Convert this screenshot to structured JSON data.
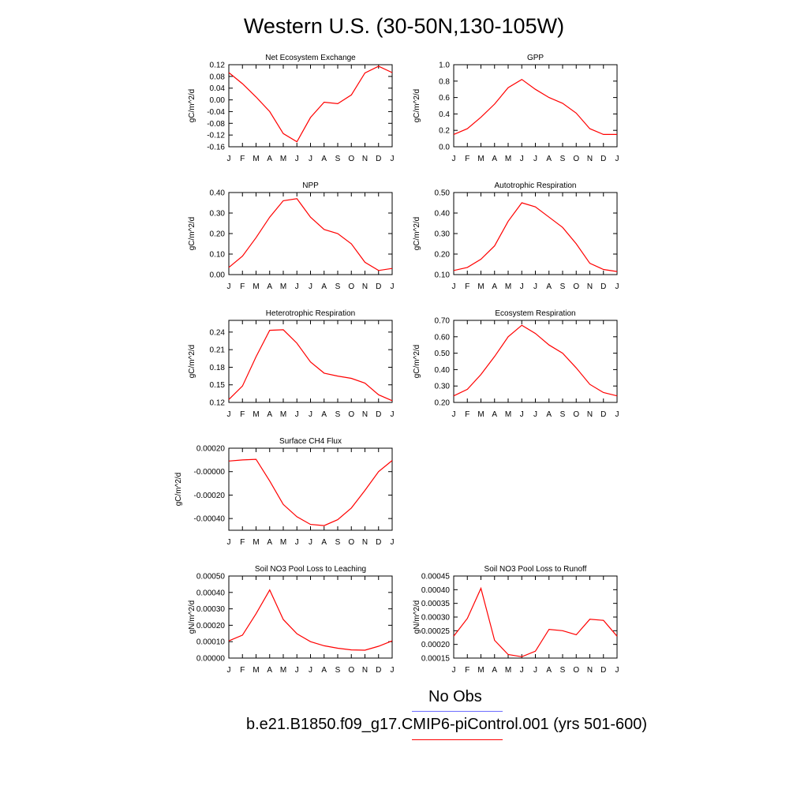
{
  "title": "Western U.S. (30-50N,130-105W)",
  "colors": {
    "model": "#ff0000",
    "obs": "#6d6dff",
    "axis": "#000000"
  },
  "legend": {
    "obs_label": "No Obs",
    "model_label": "b.e21.B1850.f09_g17.CMIP6-piControl.001 (yrs 501-600)"
  },
  "chart_data": [
    {
      "type": "line",
      "title": "Net Ecosystem Exchange",
      "ylabel": "gC/m^2/d",
      "categories": [
        "J",
        "F",
        "M",
        "A",
        "M",
        "J",
        "J",
        "A",
        "S",
        "O",
        "N",
        "D",
        "J"
      ],
      "ylim": [
        -0.16,
        0.12
      ],
      "yticks": [
        -0.16,
        -0.12,
        -0.08,
        -0.04,
        0.0,
        0.04,
        0.08,
        0.12
      ],
      "ytick_labels": [
        "-0.16",
        "-0.12",
        "-0.08",
        "-0.04",
        "0.00",
        "0.04",
        "0.08",
        "0.12"
      ],
      "values": [
        0.093,
        0.055,
        0.01,
        -0.04,
        -0.115,
        -0.143,
        -0.06,
        -0.008,
        -0.013,
        0.017,
        0.092,
        0.115,
        0.093
      ]
    },
    {
      "type": "line",
      "title": "GPP",
      "ylabel": "gC/m^2/d",
      "categories": [
        "J",
        "F",
        "M",
        "A",
        "M",
        "J",
        "J",
        "A",
        "S",
        "O",
        "N",
        "D",
        "J"
      ],
      "ylim": [
        0.0,
        1.0
      ],
      "yticks": [
        0.0,
        0.2,
        0.4,
        0.6,
        0.8,
        1.0
      ],
      "ytick_labels": [
        "0.0",
        "0.2",
        "0.4",
        "0.6",
        "0.8",
        "1.0"
      ],
      "values": [
        0.15,
        0.22,
        0.36,
        0.52,
        0.72,
        0.82,
        0.7,
        0.6,
        0.53,
        0.41,
        0.22,
        0.15,
        0.15
      ]
    },
    {
      "type": "line",
      "title": "NPP",
      "ylabel": "gC/m^2/d",
      "categories": [
        "J",
        "F",
        "M",
        "A",
        "M",
        "J",
        "J",
        "A",
        "S",
        "O",
        "N",
        "D",
        "J"
      ],
      "ylim": [
        0.0,
        0.4
      ],
      "yticks": [
        0.0,
        0.1,
        0.2,
        0.3,
        0.4
      ],
      "ytick_labels": [
        "0.00",
        "0.10",
        "0.20",
        "0.30",
        "0.40"
      ],
      "values": [
        0.035,
        0.09,
        0.18,
        0.28,
        0.36,
        0.37,
        0.28,
        0.22,
        0.2,
        0.15,
        0.06,
        0.02,
        0.03
      ]
    },
    {
      "type": "line",
      "title": "Autotrophic Respiration",
      "ylabel": "gC/m^2/d",
      "categories": [
        "J",
        "F",
        "M",
        "A",
        "M",
        "J",
        "J",
        "A",
        "S",
        "O",
        "N",
        "D",
        "J"
      ],
      "ylim": [
        0.1,
        0.5
      ],
      "yticks": [
        0.1,
        0.2,
        0.3,
        0.4,
        0.5
      ],
      "ytick_labels": [
        "0.10",
        "0.20",
        "0.30",
        "0.40",
        "0.50"
      ],
      "values": [
        0.12,
        0.135,
        0.175,
        0.24,
        0.36,
        0.45,
        0.43,
        0.38,
        0.33,
        0.25,
        0.155,
        0.125,
        0.115
      ]
    },
    {
      "type": "line",
      "title": "Heterotrophic Respiration",
      "ylabel": "gC/m^2/d",
      "categories": [
        "J",
        "F",
        "M",
        "A",
        "M",
        "J",
        "J",
        "A",
        "S",
        "O",
        "N",
        "D",
        "J"
      ],
      "ylim": [
        0.12,
        0.26
      ],
      "yticks": [
        0.12,
        0.15,
        0.18,
        0.21,
        0.24
      ],
      "ytick_labels": [
        "0.12",
        "0.15",
        "0.18",
        "0.21",
        "0.24"
      ],
      "values": [
        0.125,
        0.148,
        0.198,
        0.243,
        0.244,
        0.221,
        0.189,
        0.17,
        0.165,
        0.161,
        0.153,
        0.133,
        0.123
      ]
    },
    {
      "type": "line",
      "title": "Ecosystem Respiration",
      "ylabel": "gC/m^2/d",
      "categories": [
        "J",
        "F",
        "M",
        "A",
        "M",
        "J",
        "J",
        "A",
        "S",
        "O",
        "N",
        "D",
        "J"
      ],
      "ylim": [
        0.2,
        0.7
      ],
      "yticks": [
        0.2,
        0.3,
        0.4,
        0.5,
        0.6,
        0.7
      ],
      "ytick_labels": [
        "0.20",
        "0.30",
        "0.40",
        "0.50",
        "0.60",
        "0.70"
      ],
      "values": [
        0.24,
        0.28,
        0.37,
        0.48,
        0.6,
        0.67,
        0.62,
        0.55,
        0.5,
        0.41,
        0.31,
        0.26,
        0.24
      ]
    },
    {
      "type": "line",
      "title": "Surface CH4 Flux",
      "ylabel": "gC/m^2/d",
      "categories": [
        "J",
        "F",
        "M",
        "A",
        "M",
        "J",
        "J",
        "A",
        "S",
        "O",
        "N",
        "D",
        "J"
      ],
      "ylim": [
        -0.0005,
        0.0002
      ],
      "yticks": [
        -0.0004,
        -0.0002,
        0.0,
        0.0002
      ],
      "ytick_labels": [
        "-0.00040",
        "-0.00020",
        "-0.00000",
        "0.00020"
      ],
      "values": [
        9e-05,
        0.0001,
        0.000105,
        -8e-05,
        -0.00028,
        -0.000385,
        -0.00045,
        -0.00046,
        -0.00041,
        -0.00031,
        -0.00016,
        0.0,
        9.5e-05
      ]
    },
    {
      "type": "line",
      "title": "Soil NO3 Pool Loss to Leaching",
      "ylabel": "gN/m^2/d",
      "categories": [
        "J",
        "F",
        "M",
        "A",
        "M",
        "J",
        "J",
        "A",
        "S",
        "O",
        "N",
        "D",
        "J"
      ],
      "ylim": [
        0.0,
        0.0005
      ],
      "yticks": [
        0.0,
        0.0001,
        0.0002,
        0.0003,
        0.0004,
        0.0005
      ],
      "ytick_labels": [
        "0.00000",
        "0.00010",
        "0.00020",
        "0.00030",
        "0.00040",
        "0.00050"
      ],
      "values": [
        0.000105,
        0.00014,
        0.00027,
        0.000415,
        0.000235,
        0.000148,
        0.0001,
        7.5e-05,
        6e-05,
        5e-05,
        4.8e-05,
        7.2e-05,
        0.000105
      ]
    },
    {
      "type": "line",
      "title": "Soil NO3 Pool Loss to Runoff",
      "ylabel": "gN/m^2/d",
      "categories": [
        "J",
        "F",
        "M",
        "A",
        "M",
        "J",
        "J",
        "A",
        "S",
        "O",
        "N",
        "D",
        "J"
      ],
      "ylim": [
        0.00015,
        0.00045
      ],
      "yticks": [
        0.00015,
        0.0002,
        0.00025,
        0.0003,
        0.00035,
        0.0004,
        0.00045
      ],
      "ytick_labels": [
        "0.00015",
        "0.00020",
        "0.00025",
        "0.00030",
        "0.00035",
        "0.00040",
        "0.00045"
      ],
      "values": [
        0.00023,
        0.000295,
        0.000405,
        0.000215,
        0.000163,
        0.000155,
        0.000175,
        0.000255,
        0.00025,
        0.000235,
        0.000292,
        0.000288,
        0.00023
      ]
    }
  ]
}
